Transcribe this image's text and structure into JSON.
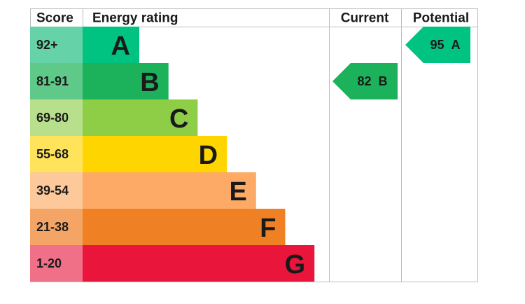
{
  "chart_data": {
    "type": "epc",
    "headers": {
      "score": "Score",
      "rating": "Energy rating",
      "current": "Current",
      "potential": "Potential"
    },
    "bands": [
      {
        "score": "92+",
        "letter": "A",
        "color": "#00c281",
        "score_color": "#66d2a8"
      },
      {
        "score": "81-91",
        "letter": "B",
        "color": "#1cb25b",
        "score_color": "#5fc989"
      },
      {
        "score": "69-80",
        "letter": "C",
        "color": "#8dce46",
        "score_color": "#b8e08c"
      },
      {
        "score": "55-68",
        "letter": "D",
        "color": "#ffd500",
        "score_color": "#ffe35a"
      },
      {
        "score": "39-54",
        "letter": "E",
        "color": "#fcaa65",
        "score_color": "#fdc89a"
      },
      {
        "score": "21-38",
        "letter": "F",
        "color": "#ef8023",
        "score_color": "#f4a566"
      },
      {
        "score": "1-20",
        "letter": "G",
        "color": "#e9153b",
        "score_color": "#f07088"
      }
    ],
    "current": {
      "value": 82,
      "letter": "B"
    },
    "potential": {
      "value": 95,
      "letter": "A"
    }
  }
}
